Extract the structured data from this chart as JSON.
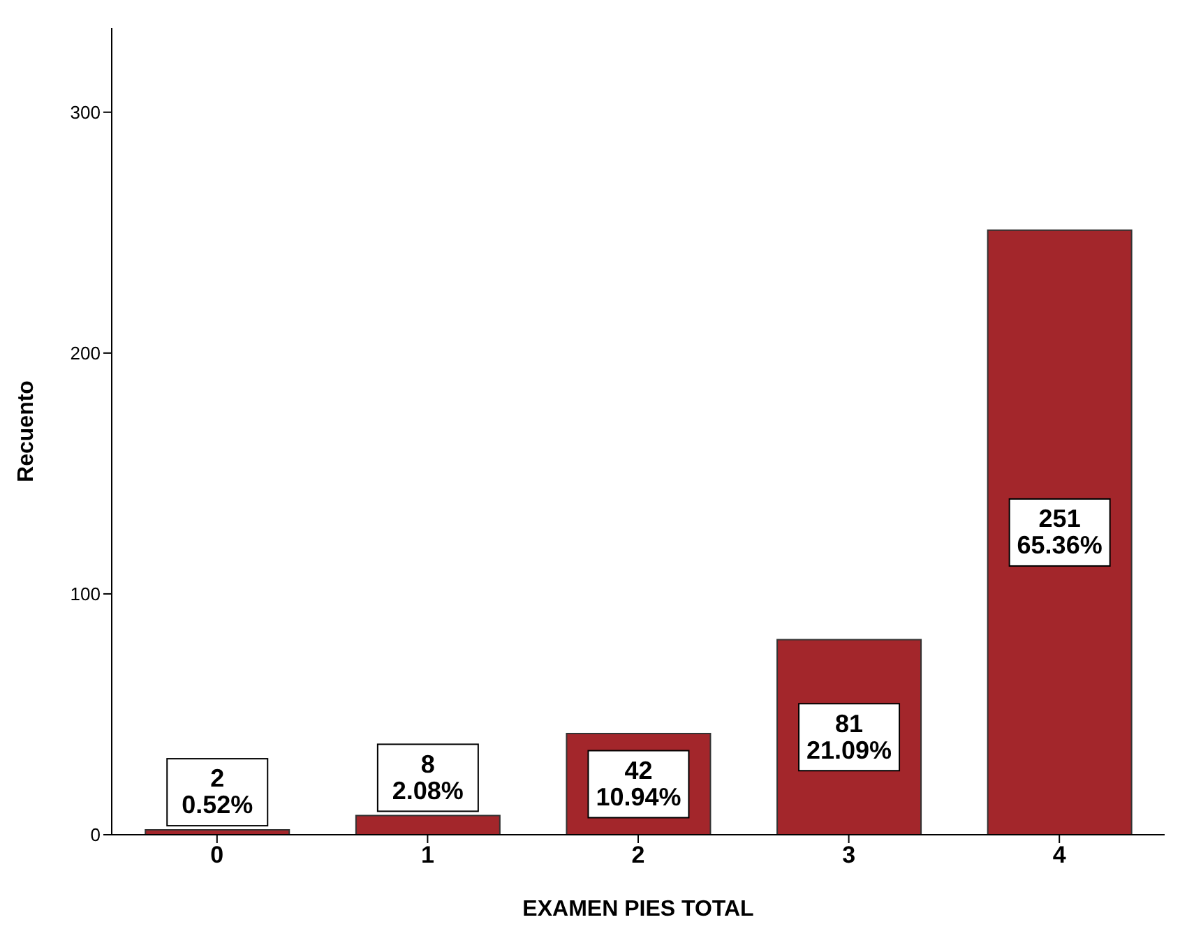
{
  "chart_data": {
    "type": "bar",
    "xlabel": "EXAMEN PIES TOTAL",
    "ylabel": "Recuento",
    "categories": [
      "0",
      "1",
      "2",
      "3",
      "4"
    ],
    "values": [
      2,
      8,
      42,
      81,
      251
    ],
    "value_labels": [
      "2\n0.52%",
      "8\n2.08%",
      "42\n10.94%",
      "81\n21.09%",
      "251\n65.36%"
    ],
    "color": "#a3262b",
    "ylim": [
      0,
      335
    ],
    "yticks": [
      0,
      100,
      200,
      300
    ],
    "grid": false,
    "legend": false
  }
}
